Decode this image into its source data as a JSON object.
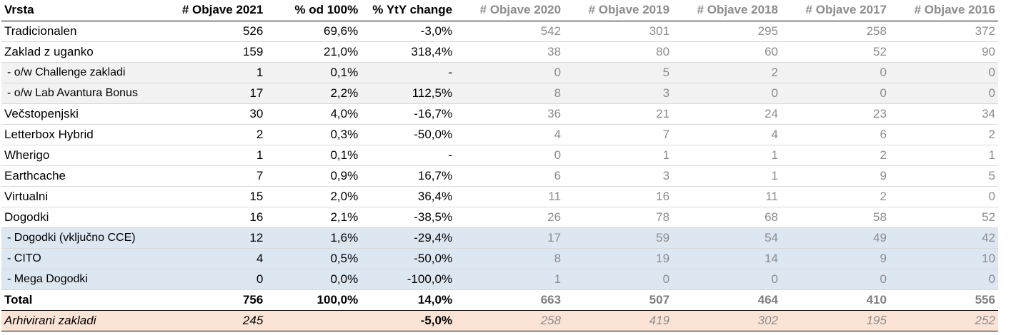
{
  "table": {
    "headers": [
      "Vrsta",
      "# Objave 2021",
      "% od 100%",
      "% YtY change",
      "# Objave 2020",
      "# Objave 2019",
      "# Objave 2018",
      "# Objave 2017",
      "# Objave 2016"
    ],
    "rows": [
      [
        "Tradicionalen",
        "526",
        "69,6%",
        "-3,0%",
        "542",
        "301",
        "295",
        "258",
        "372"
      ],
      [
        "Zaklad z uganko",
        "159",
        "21,0%",
        "318,4%",
        "38",
        "80",
        "60",
        "52",
        "90"
      ],
      [
        " - o/w Challenge zakladi",
        "1",
        "0,1%",
        "-",
        "0",
        "5",
        "2",
        "0",
        "0"
      ],
      [
        " - o/w Lab Avantura Bonus",
        "17",
        "2,2%",
        "112,5%",
        "8",
        "3",
        "0",
        "0",
        "0"
      ],
      [
        "Večstopenjski",
        "30",
        "4,0%",
        "-16,7%",
        "36",
        "21",
        "24",
        "23",
        "34"
      ],
      [
        "Letterbox Hybrid",
        "2",
        "0,3%",
        "-50,0%",
        "4",
        "7",
        "4",
        "6",
        "2"
      ],
      [
        "Wherigo",
        "1",
        "0,1%",
        "-",
        "0",
        "1",
        "1",
        "2",
        "1"
      ],
      [
        "Earthcache",
        "7",
        "0,9%",
        "16,7%",
        "6",
        "3",
        "1",
        "9",
        "5"
      ],
      [
        "Virtualni",
        "15",
        "2,0%",
        "36,4%",
        "11",
        "16",
        "11",
        "2",
        "0"
      ],
      [
        "Dogodki",
        "16",
        "2,1%",
        "-38,5%",
        "26",
        "78",
        "68",
        "58",
        "52"
      ],
      [
        " - Dogodki (vključno CCE)",
        "12",
        "1,6%",
        "-29,4%",
        "17",
        "59",
        "54",
        "49",
        "42"
      ],
      [
        " - CITO",
        "4",
        "0,5%",
        "-50,0%",
        "8",
        "19",
        "14",
        "9",
        "10"
      ],
      [
        " - Mega Dogodki",
        "0",
        "0,0%",
        "-100,0%",
        "1",
        "0",
        "0",
        "0",
        "0"
      ]
    ],
    "total": [
      "Total",
      "756",
      "100,0%",
      "14,0%",
      "663",
      "507",
      "464",
      "410",
      "556"
    ],
    "archived": [
      "Arhivirani zakladi",
      "245",
      "",
      "-5,0%",
      "258",
      "419",
      "302",
      "195",
      "252"
    ]
  },
  "colors": {
    "header_grey": "#8c8c8c",
    "subrow_grey_fill": "#f2f2f2",
    "subrow_blue_fill": "#dde7f2",
    "archived_fill": "#fbe3d6"
  }
}
